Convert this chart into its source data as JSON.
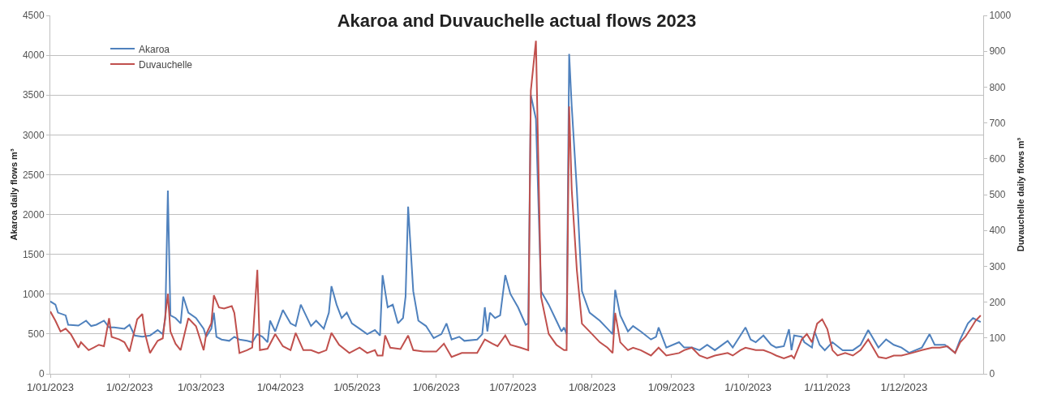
{
  "chart_data": {
    "type": "line",
    "title": "Akaroa and Duvauchelle actual flows 2023",
    "ylabel": "Akaroa daily flows m³",
    "y2label": "Duvauchelle daily flows m³",
    "xlim": [
      "2023-01-01",
      "2024-01-01"
    ],
    "xticks": [
      {
        "value": "2023-01-01",
        "label": "1/01/2023"
      },
      {
        "value": "2023-02-01",
        "label": "1/02/2023"
      },
      {
        "value": "2023-03-01",
        "label": "1/03/2023"
      },
      {
        "value": "2023-04-01",
        "label": "1/04/2023"
      },
      {
        "value": "2023-05-01",
        "label": "1/05/2023"
      },
      {
        "value": "2023-06-01",
        "label": "1/06/2023"
      },
      {
        "value": "2023-07-01",
        "label": "1/07/2023"
      },
      {
        "value": "2023-08-01",
        "label": "1/08/2023"
      },
      {
        "value": "2023-09-01",
        "label": "1/09/2023"
      },
      {
        "value": "2023-10-01",
        "label": "1/10/2023"
      },
      {
        "value": "2023-11-01",
        "label": "1/11/2023"
      },
      {
        "value": "2023-12-01",
        "label": "1/12/2023"
      }
    ],
    "ylim": [
      0,
      4500
    ],
    "yticks": [
      0,
      500,
      1000,
      1500,
      2000,
      2500,
      3000,
      3500,
      4000,
      4500
    ],
    "y2lim": [
      0,
      1000
    ],
    "y2ticks": [
      0,
      100,
      200,
      300,
      400,
      500,
      600,
      700,
      800,
      900,
      1000
    ],
    "grid": "y",
    "legend": "top left",
    "marker": "none",
    "line_style": "solid",
    "series": [
      {
        "name": "Akaroa",
        "color": "#4f81bd",
        "x": [
          "2023-01-01",
          "2023-01-03",
          "2023-01-04",
          "2023-01-07",
          "2023-01-08",
          "2023-01-12",
          "2023-01-15",
          "2023-01-17",
          "2023-01-19",
          "2023-01-22",
          "2023-01-24",
          "2023-01-26",
          "2023-01-30",
          "2023-02-01",
          "2023-02-03",
          "2023-02-06",
          "2023-02-09",
          "2023-02-12",
          "2023-02-14",
          "2023-02-15",
          "2023-02-16",
          "2023-02-17",
          "2023-02-19",
          "2023-02-21",
          "2023-02-22",
          "2023-02-24",
          "2023-02-27",
          "2023-03-02",
          "2023-03-03",
          "2023-03-05",
          "2023-03-06",
          "2023-03-07",
          "2023-03-09",
          "2023-03-12",
          "2023-03-14",
          "2023-03-16",
          "2023-03-19",
          "2023-03-21",
          "2023-03-23",
          "2023-03-25",
          "2023-03-27",
          "2023-03-28",
          "2023-03-30",
          "2023-04-02",
          "2023-04-05",
          "2023-04-07",
          "2023-04-09",
          "2023-04-11",
          "2023-04-13",
          "2023-04-15",
          "2023-04-18",
          "2023-04-20",
          "2023-04-21",
          "2023-04-23",
          "2023-04-25",
          "2023-04-27",
          "2023-04-29",
          "2023-05-02",
          "2023-05-05",
          "2023-05-08",
          "2023-05-10",
          "2023-05-11",
          "2023-05-13",
          "2023-05-15",
          "2023-05-17",
          "2023-05-19",
          "2023-05-20",
          "2023-05-21",
          "2023-05-23",
          "2023-05-25",
          "2023-05-28",
          "2023-05-31",
          "2023-06-03",
          "2023-06-05",
          "2023-06-07",
          "2023-06-10",
          "2023-06-12",
          "2023-06-17",
          "2023-06-19",
          "2023-06-20",
          "2023-06-21",
          "2023-06-22",
          "2023-06-24",
          "2023-06-26",
          "2023-06-28",
          "2023-06-30",
          "2023-07-03",
          "2023-07-06",
          "2023-07-07",
          "2023-07-08",
          "2023-07-10",
          "2023-07-12",
          "2023-07-15",
          "2023-07-18",
          "2023-07-20",
          "2023-07-21",
          "2023-07-22",
          "2023-07-23",
          "2023-07-24",
          "2023-07-26",
          "2023-07-28",
          "2023-07-31",
          "2023-08-04",
          "2023-08-07",
          "2023-08-09",
          "2023-08-10",
          "2023-08-12",
          "2023-08-15",
          "2023-08-17",
          "2023-08-20",
          "2023-08-24",
          "2023-08-26",
          "2023-08-27",
          "2023-08-30",
          "2023-09-04",
          "2023-09-06",
          "2023-09-09",
          "2023-09-12",
          "2023-09-15",
          "2023-09-18",
          "2023-09-23",
          "2023-09-25",
          "2023-09-28",
          "2023-09-30",
          "2023-10-02",
          "2023-10-04",
          "2023-10-07",
          "2023-10-10",
          "2023-10-12",
          "2023-10-15",
          "2023-10-17",
          "2023-10-18",
          "2023-10-19",
          "2023-10-22",
          "2023-10-23",
          "2023-10-26",
          "2023-10-27",
          "2023-10-29",
          "2023-10-31",
          "2023-11-03",
          "2023-11-07",
          "2023-11-11",
          "2023-11-14",
          "2023-11-17",
          "2023-11-21",
          "2023-11-24",
          "2023-11-27",
          "2023-11-30",
          "2023-12-03",
          "2023-12-08",
          "2023-12-11",
          "2023-12-13",
          "2023-12-17",
          "2023-12-21",
          "2023-12-23",
          "2023-12-26",
          "2023-12-28",
          "2023-12-31"
        ],
        "values": [
          909,
          870,
          768,
          734,
          616,
          606,
          667,
          600,
          616,
          667,
          582,
          582,
          566,
          616,
          481,
          465,
          481,
          549,
          498,
          700,
          2300,
          734,
          700,
          633,
          970,
          768,
          700,
          566,
          465,
          566,
          768,
          465,
          431,
          414,
          465,
          431,
          414,
          397,
          498,
          465,
          397,
          667,
          532,
          801,
          633,
          600,
          869,
          734,
          600,
          667,
          566,
          768,
          1100,
          869,
          700,
          768,
          633,
          566,
          498,
          549,
          481,
          1239,
          835,
          869,
          633,
          700,
          970,
          2100,
          1037,
          667,
          600,
          448,
          498,
          633,
          431,
          465,
          414,
          431,
          498,
          835,
          532,
          768,
          700,
          734,
          1239,
          1003,
          835,
          616,
          633,
          3500,
          3200,
          1037,
          869,
          667,
          532,
          582,
          498,
          4017,
          3360,
          2316,
          1037,
          768,
          667,
          566,
          498,
          1054,
          734,
          532,
          600,
          532,
          431,
          465,
          582,
          330,
          397,
          330,
          330,
          296,
          364,
          296,
          414,
          330,
          481,
          582,
          431,
          397,
          481,
          364,
          330,
          347,
          560,
          296,
          481,
          465,
          397,
          330,
          532,
          364,
          296,
          397,
          296,
          296,
          364,
          549,
          330,
          431,
          364,
          330,
          263,
          330,
          498,
          364,
          364,
          263,
          431,
          633,
          700,
          650
        ]
      },
      {
        "name": "Duvauchelle",
        "color": "#c0504d",
        "axis": "y2",
        "x": [
          "2023-01-01",
          "2023-01-03",
          "2023-01-05",
          "2023-01-07",
          "2023-01-09",
          "2023-01-12",
          "2023-01-13",
          "2023-01-16",
          "2023-01-18",
          "2023-01-20",
          "2023-01-22",
          "2023-01-24",
          "2023-01-25",
          "2023-01-28",
          "2023-01-30",
          "2023-02-01",
          "2023-02-04",
          "2023-02-06",
          "2023-02-07",
          "2023-02-09",
          "2023-02-12",
          "2023-02-14",
          "2023-02-16",
          "2023-02-17",
          "2023-02-19",
          "2023-02-21",
          "2023-02-24",
          "2023-02-27",
          "2023-03-02",
          "2023-03-03",
          "2023-03-05",
          "2023-03-06",
          "2023-03-08",
          "2023-03-10",
          "2023-03-13",
          "2023-03-14",
          "2023-03-16",
          "2023-03-19",
          "2023-03-21",
          "2023-03-23",
          "2023-03-24",
          "2023-03-27",
          "2023-03-30",
          "2023-04-02",
          "2023-04-05",
          "2023-04-07",
          "2023-04-10",
          "2023-04-13",
          "2023-04-16",
          "2023-04-19",
          "2023-04-21",
          "2023-04-24",
          "2023-04-28",
          "2023-05-02",
          "2023-05-05",
          "2023-05-08",
          "2023-05-09",
          "2023-05-11",
          "2023-05-12",
          "2023-05-14",
          "2023-05-18",
          "2023-05-21",
          "2023-05-23",
          "2023-05-27",
          "2023-06-01",
          "2023-06-04",
          "2023-06-07",
          "2023-06-11",
          "2023-06-17",
          "2023-06-20",
          "2023-06-23",
          "2023-06-25",
          "2023-06-28",
          "2023-06-30",
          "2023-07-04",
          "2023-07-07",
          "2023-07-08",
          "2023-07-10",
          "2023-07-12",
          "2023-07-15",
          "2023-07-18",
          "2023-07-21",
          "2023-07-22",
          "2023-07-23",
          "2023-07-24",
          "2023-07-26",
          "2023-07-28",
          "2023-07-31",
          "2023-08-04",
          "2023-08-07",
          "2023-08-09",
          "2023-08-10",
          "2023-08-12",
          "2023-08-15",
          "2023-08-17",
          "2023-08-20",
          "2023-08-24",
          "2023-08-27",
          "2023-08-30",
          "2023-09-04",
          "2023-09-06",
          "2023-09-09",
          "2023-09-12",
          "2023-09-15",
          "2023-09-18",
          "2023-09-23",
          "2023-09-25",
          "2023-09-28",
          "2023-09-30",
          "2023-10-04",
          "2023-10-07",
          "2023-10-10",
          "2023-10-12",
          "2023-10-15",
          "2023-10-18",
          "2023-10-19",
          "2023-10-22",
          "2023-10-24",
          "2023-10-26",
          "2023-10-28",
          "2023-10-30",
          "2023-11-01",
          "2023-11-03",
          "2023-11-05",
          "2023-11-08",
          "2023-11-11",
          "2023-11-14",
          "2023-11-17",
          "2023-11-21",
          "2023-11-24",
          "2023-11-27",
          "2023-11-30",
          "2023-12-04",
          "2023-12-08",
          "2023-12-12",
          "2023-12-15",
          "2023-12-18",
          "2023-12-21",
          "2023-12-23",
          "2023-12-25",
          "2023-12-27",
          "2023-12-29",
          "2023-12-31"
        ],
        "values": [
          174,
          148,
          118,
          126,
          111,
          73,
          88,
          66,
          73,
          81,
          77,
          155,
          103,
          96,
          88,
          62,
          152,
          167,
          114,
          58,
          92,
          99,
          223,
          118,
          84,
          66,
          155,
          133,
          66,
          111,
          141,
          219,
          185,
          182,
          189,
          170,
          58,
          66,
          73,
          290,
          66,
          70,
          111,
          77,
          66,
          114,
          66,
          66,
          58,
          66,
          114,
          81,
          58,
          73,
          58,
          66,
          51,
          51,
          107,
          73,
          69,
          107,
          66,
          62,
          62,
          84,
          47,
          58,
          58,
          96,
          84,
          77,
          107,
          81,
          73,
          66,
          790,
          929,
          215,
          111,
          81,
          66,
          66,
          746,
          514,
          290,
          140,
          118,
          88,
          73,
          58,
          170,
          88,
          66,
          73,
          66,
          51,
          73,
          51,
          58,
          66,
          73,
          51,
          43,
          51,
          58,
          51,
          66,
          73,
          66,
          66,
          58,
          51,
          43,
          51,
          43,
          96,
          111,
          88,
          140,
          152,
          125,
          66,
          51,
          58,
          51,
          66,
          96,
          47,
          43,
          51,
          51,
          58,
          66,
          73,
          73,
          77,
          58,
          88,
          103,
          125,
          148,
          163
        ]
      }
    ]
  }
}
